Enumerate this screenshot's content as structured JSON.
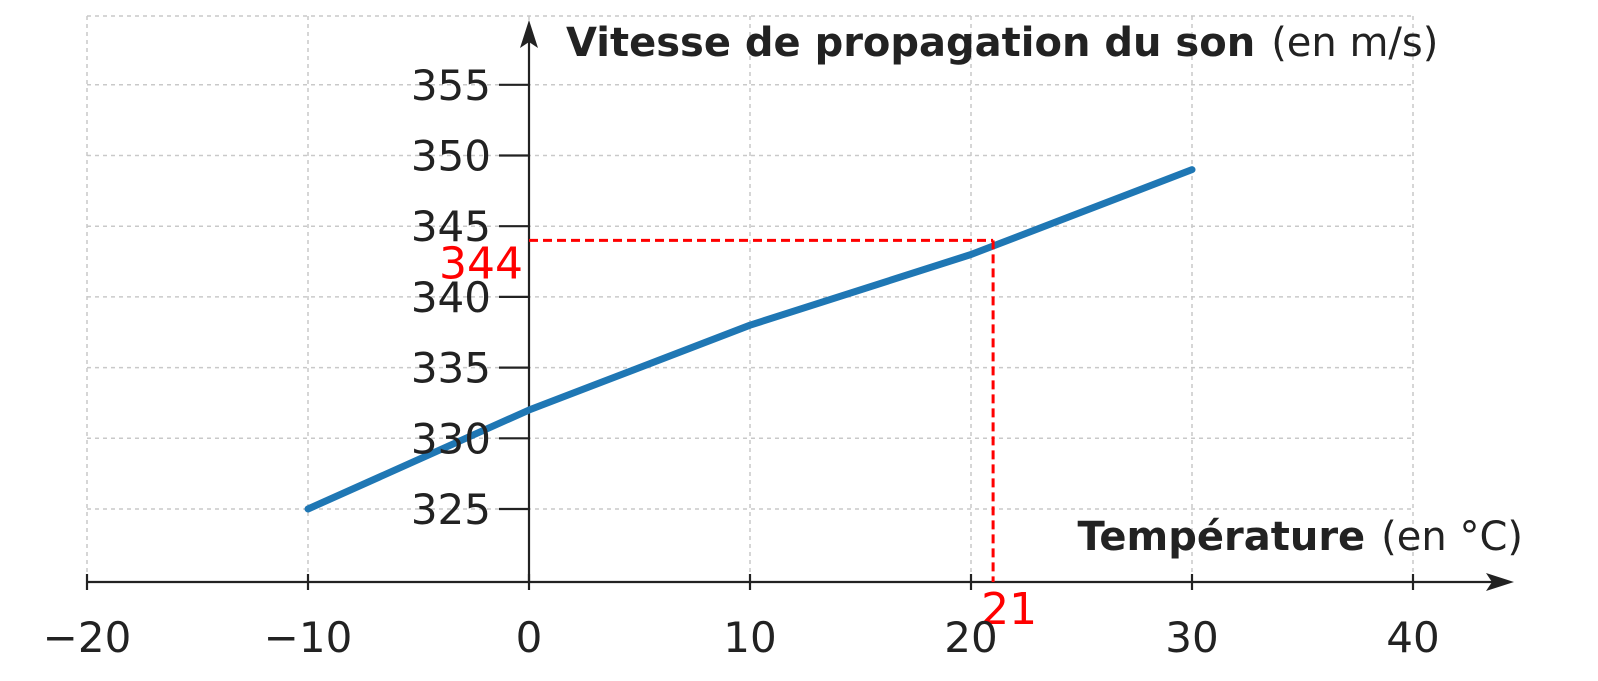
{
  "chart_data": {
    "type": "line",
    "x_ticks": [
      -20,
      -10,
      0,
      10,
      20,
      30,
      40
    ],
    "x_tick_labels": [
      "−20",
      "−10",
      "0",
      "10",
      "20",
      "30",
      "40"
    ],
    "y_ticks": [
      325,
      330,
      335,
      340,
      345,
      350,
      355
    ],
    "y_tick_labels": [
      "325",
      "330",
      "335",
      "340",
      "345",
      "350",
      "355"
    ],
    "xlim": [
      -20,
      40
    ],
    "ylim": [
      320,
      360
    ],
    "xlabel_bold": "Température",
    "xlabel_unit": "(en °C)",
    "ylabel_bold": "Vitesse de propagation du son",
    "ylabel_unit": "(en m/s)",
    "grid": true,
    "series": [
      {
        "color": "#1f77b4",
        "x": [
          -10,
          0,
          10,
          20,
          30
        ],
        "y": [
          325,
          332,
          338,
          343,
          349
        ]
      }
    ],
    "annotation": {
      "color": "#ff0000",
      "x": 21,
      "y": 344,
      "x_label": "21",
      "y_label": "344"
    }
  }
}
